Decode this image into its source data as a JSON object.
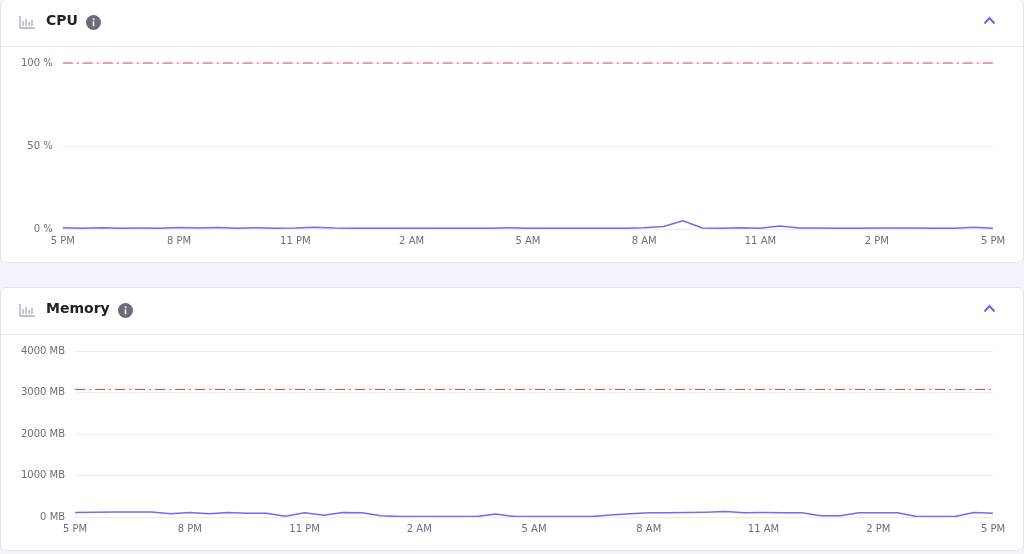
{
  "chart_data": [
    {
      "type": "line",
      "title": "CPU",
      "categories": [
        "5 PM",
        null,
        null,
        null,
        null,
        null,
        "8 PM",
        null,
        null,
        null,
        null,
        null,
        "11 PM",
        null,
        null,
        null,
        null,
        null,
        "2 AM",
        null,
        null,
        null,
        null,
        null,
        "5 AM",
        null,
        null,
        null,
        null,
        null,
        "8 AM",
        null,
        null,
        null,
        null,
        null,
        "11 AM",
        null,
        null,
        null,
        null,
        null,
        "2 PM",
        null,
        null,
        null,
        null,
        null,
        "5 PM"
      ],
      "ylim": [
        0,
        100
      ],
      "yticks": [
        {
          "value": 0,
          "label": "0 %"
        },
        {
          "value": 50,
          "label": "50 %"
        },
        {
          "value": 100,
          "label": "100 %"
        }
      ],
      "grid": "y",
      "legend": false,
      "marker": "none",
      "line_style": "solid",
      "ref_lines": [
        {
          "axis": "y",
          "value": 100,
          "color": "#ef4444",
          "line_style": "dashed"
        }
      ],
      "series": [
        {
          "color": "#7b68ee",
          "values": [
            0.8,
            0.5,
            0.8,
            0.5,
            0.6,
            0.5,
            0.9,
            0.6,
            0.9,
            0.5,
            0.8,
            0.5,
            0.6,
            1,
            0.6,
            0.5,
            0.5,
            0.4,
            0.4,
            0.4,
            0.4,
            0.4,
            0.4,
            0.8,
            0.4,
            0.4,
            0.4,
            0.4,
            0.4,
            0.5,
            0.7,
            1.5,
            5,
            0.6,
            0.5,
            0.7,
            0.5,
            1.8,
            0.6,
            0.6,
            0.5,
            0.5,
            0.6,
            0.6,
            0.6,
            0.5,
            0.5,
            1,
            0.5
          ]
        }
      ]
    },
    {
      "type": "line",
      "title": "Memory",
      "categories": [
        "5 PM",
        null,
        null,
        null,
        null,
        null,
        "8 PM",
        null,
        null,
        null,
        null,
        null,
        "11 PM",
        null,
        null,
        null,
        null,
        null,
        "2 AM",
        null,
        null,
        null,
        null,
        null,
        "5 AM",
        null,
        null,
        null,
        null,
        null,
        "8 AM",
        null,
        null,
        null,
        null,
        null,
        "11 AM",
        null,
        null,
        null,
        null,
        null,
        "2 PM",
        null,
        null,
        null,
        null,
        null,
        "5 PM"
      ],
      "ylim": [
        0,
        4000
      ],
      "yticks": [
        {
          "value": 0,
          "label": "0 MB"
        },
        {
          "value": 1000,
          "label": "1000 MB"
        },
        {
          "value": 2000,
          "label": "2000 MB"
        },
        {
          "value": 3000,
          "label": "3000 MB"
        },
        {
          "value": 4000,
          "label": "4000 MB"
        }
      ],
      "grid": "y",
      "legend": false,
      "marker": "none",
      "line_style": "solid",
      "ref_lines": [
        {
          "axis": "y",
          "value": 3072,
          "color": "#ef4444",
          "line_style": "dashed"
        }
      ],
      "series": [
        {
          "color": "#7b68ee",
          "values": [
            110,
            115,
            120,
            120,
            120,
            80,
            110,
            80,
            110,
            90,
            90,
            20,
            100,
            40,
            110,
            100,
            30,
            10,
            10,
            10,
            10,
            10,
            70,
            10,
            10,
            10,
            10,
            10,
            50,
            80,
            100,
            105,
            110,
            115,
            130,
            100,
            110,
            100,
            100,
            30,
            30,
            100,
            100,
            100,
            10,
            10,
            10,
            110,
            90
          ]
        }
      ]
    }
  ]
}
